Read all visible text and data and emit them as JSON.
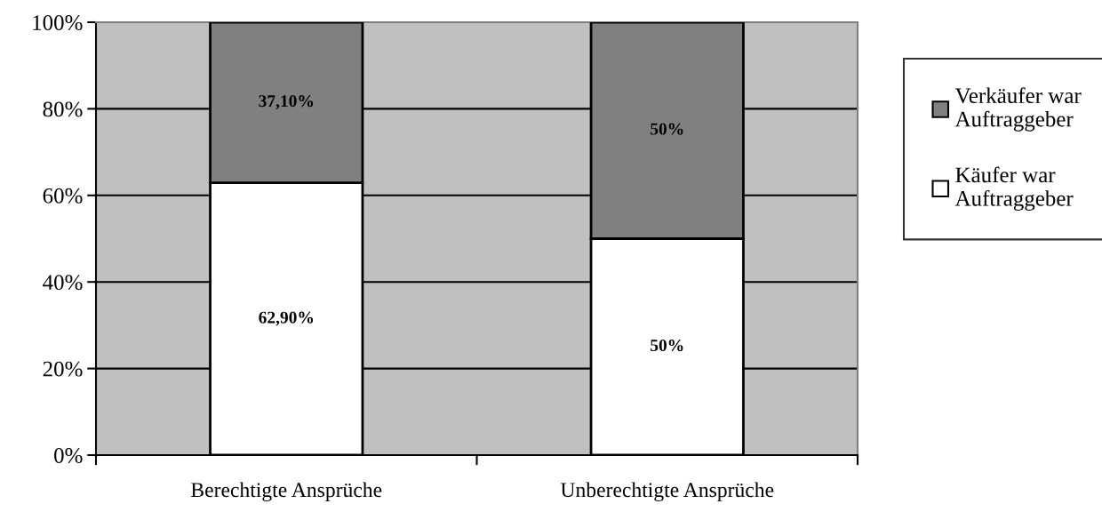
{
  "chart_data": {
    "type": "bar",
    "stacked": true,
    "categories": [
      "Berechtigte Ansprüche",
      "Unberechtigte Ansprüche"
    ],
    "series": [
      {
        "name": "Käufer war Auftraggeber",
        "color": "#ffffff",
        "values": [
          62.9,
          50
        ],
        "value_labels": [
          "62,90%",
          "50%"
        ]
      },
      {
        "name": "Verkäufer war Auftraggeber",
        "color": "#808080",
        "values": [
          37.1,
          50
        ],
        "value_labels": [
          "37,10%",
          "50%"
        ]
      }
    ],
    "ylim": [
      0,
      100
    ],
    "yticks": [
      {
        "value": 0,
        "label": "0%"
      },
      {
        "value": 20,
        "label": "20%"
      },
      {
        "value": 40,
        "label": "40%"
      },
      {
        "value": 60,
        "label": "60%"
      },
      {
        "value": 80,
        "label": "80%"
      },
      {
        "value": 100,
        "label": "100%"
      }
    ],
    "grid": "y",
    "legend": "right"
  }
}
